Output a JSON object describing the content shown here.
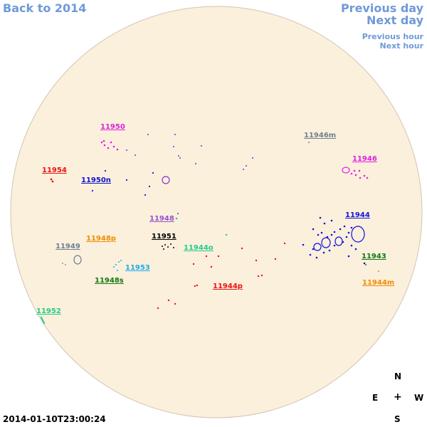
{
  "nav": {
    "back_label": "Back to 2014",
    "prev_day_label": "Previous day",
    "next_day_label": "Next day",
    "prev_hour_label": "Previous hour",
    "next_hour_label": "Next hour",
    "link_color": "#6f9ad8"
  },
  "timestamp": "2014-01-10T23:00:24",
  "compass": {
    "north": "N",
    "east": "E",
    "center": "+",
    "west": "W",
    "south": "S"
  },
  "disk": {
    "fill": "#fbf0dc",
    "stroke": "#cfc5b3"
  },
  "regions": [
    {
      "id": "11950",
      "label": "11950",
      "color": "#dd22dd"
    },
    {
      "id": "11946m",
      "label": "11946m",
      "color": "#708090"
    },
    {
      "id": "11954",
      "label": "11954",
      "color": "#ee1111"
    },
    {
      "id": "11950n",
      "label": "11950n",
      "color": "#1111cc"
    },
    {
      "id": "11946",
      "label": "11946",
      "color": "#dd22dd"
    },
    {
      "id": "11948",
      "label": "11948",
      "color": "#9a4fd0"
    },
    {
      "id": "11944",
      "label": "11944",
      "color": "#1111dd"
    },
    {
      "id": "11948p",
      "label": "11948p",
      "color": "#f08c00"
    },
    {
      "id": "11951",
      "label": "11951",
      "color": "#000000"
    },
    {
      "id": "11949",
      "label": "11949",
      "color": "#708090"
    },
    {
      "id": "11944o",
      "label": "11944o",
      "color": "#22cc88"
    },
    {
      "id": "11943",
      "label": "11943",
      "color": "#117711"
    },
    {
      "id": "11953",
      "label": "11953",
      "color": "#22aaee"
    },
    {
      "id": "11948s",
      "label": "11948s",
      "color": "#117711"
    },
    {
      "id": "11944p",
      "label": "11944p",
      "color": "#ee1111"
    },
    {
      "id": "11944m",
      "label": "11944m",
      "color": "#f08c00"
    },
    {
      "id": "11952",
      "label": "11952",
      "color": "#22cc88"
    }
  ]
}
